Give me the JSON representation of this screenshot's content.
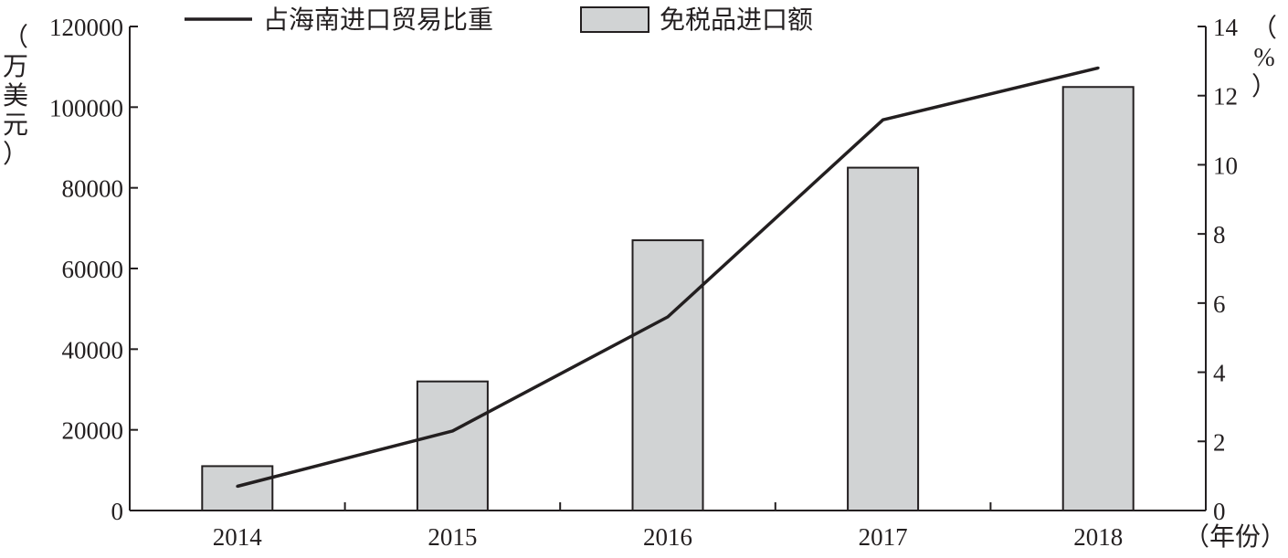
{
  "chart_data": {
    "type": "bar",
    "categories": [
      "2014",
      "2015",
      "2016",
      "2017",
      "2018"
    ],
    "xlabel": "（年份）",
    "series": [
      {
        "name": "免税品进口额",
        "type": "bar",
        "axis": "left",
        "values": [
          11000,
          32000,
          67000,
          85000,
          105000
        ]
      },
      {
        "name": "占海南进口贸易比重",
        "type": "line",
        "axis": "right",
        "values": [
          0.7,
          2.3,
          5.6,
          11.3,
          12.8
        ]
      }
    ],
    "ylabel_left": "（万美元）",
    "ylabel_right": "（%）",
    "ylim_left": [
      0,
      120000
    ],
    "ylim_right": [
      0,
      14
    ],
    "yticks_left": [
      "0",
      "20000",
      "40000",
      "60000",
      "80000",
      "100000",
      "120000"
    ],
    "yticks_right": [
      "0",
      "2",
      "4",
      "6",
      "8",
      "10",
      "12",
      "14"
    ],
    "legend_position": "top",
    "grid": false,
    "colors": {
      "bar_fill": "#d1d3d4",
      "bar_stroke": "#231f20",
      "line": "#231f20",
      "axis": "#231f20"
    }
  }
}
